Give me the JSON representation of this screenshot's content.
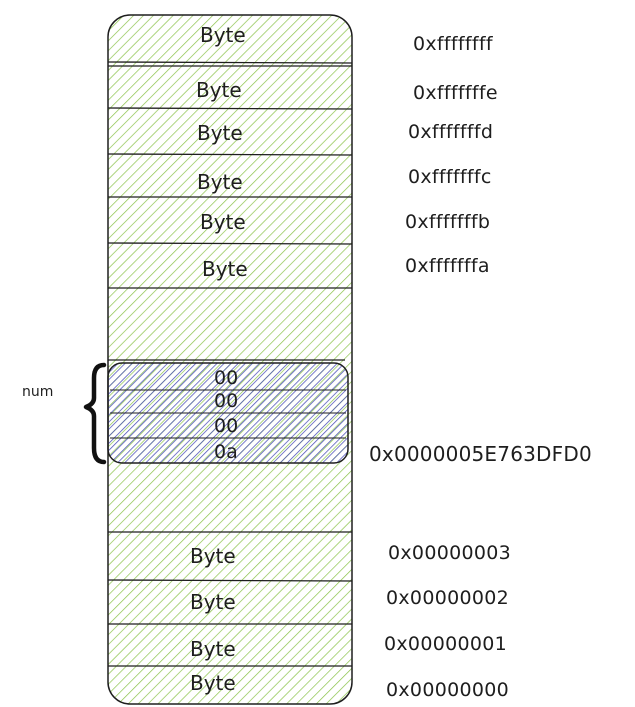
{
  "memory": {
    "top_cells": [
      {
        "label": "Byte",
        "address": "0xffffffff"
      },
      {
        "label": "Byte",
        "address": "0xfffffffe"
      },
      {
        "label": "Byte",
        "address": "0xfffffffd"
      },
      {
        "label": "Byte",
        "address": "0xfffffffc"
      },
      {
        "label": "Byte",
        "address": "0xfffffffb"
      },
      {
        "label": "Byte",
        "address": "0xfffffffa"
      }
    ],
    "variable": {
      "name": "num",
      "bytes": [
        "00",
        "00",
        "00",
        "0a"
      ],
      "address": "0x0000005E763DFD0"
    },
    "bottom_cells": [
      {
        "label": "Byte",
        "address": "0x00000003"
      },
      {
        "label": "Byte",
        "address": "0x00000002"
      },
      {
        "label": "Byte",
        "address": "0x00000001"
      },
      {
        "label": "Byte",
        "address": "0x00000000"
      }
    ]
  },
  "colors": {
    "memory_fill": "#8bc34a",
    "variable_fill": "#5b5fc7",
    "stroke": "#1e1e1e"
  }
}
